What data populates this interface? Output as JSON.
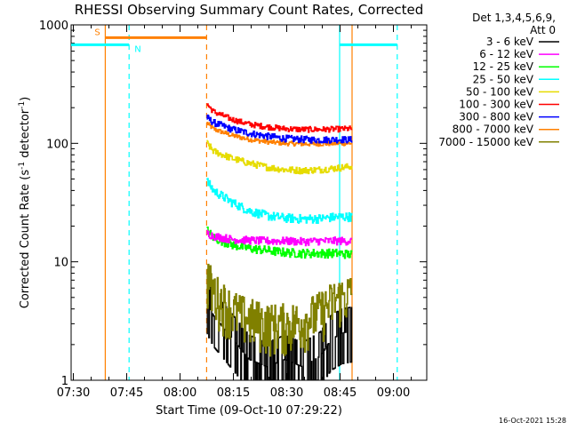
{
  "chart_data": {
    "type": "line",
    "title": "RHESSI Observing Summary Count Rates, Corrected",
    "xlabel": "Start Time (09-Oct-10 07:29:22)",
    "ylabel": "Corrected Count Rate (s⁻¹ detector⁻¹)",
    "ylabel_parts": [
      "Corrected Count Rate (s",
      "-1",
      " detector",
      "-1",
      ")"
    ],
    "x_unit": "minutes after 07:29:22",
    "xlim": [
      0,
      100
    ],
    "ylim": [
      1,
      1000
    ],
    "yscale": "log",
    "x_ticks": [
      {
        "label": "07:30",
        "x": 0.63
      },
      {
        "label": "07:45",
        "x": 15.63
      },
      {
        "label": "08:00",
        "x": 30.63
      },
      {
        "label": "08:15",
        "x": 45.63
      },
      {
        "label": "08:30",
        "x": 60.63
      },
      {
        "label": "08:45",
        "x": 75.63
      },
      {
        "label": "09:00",
        "x": 90.63
      }
    ],
    "y_ticks": [
      {
        "label": "1",
        "y": 1
      },
      {
        "label": "10",
        "y": 10
      },
      {
        "label": "100",
        "y": 100
      },
      {
        "label": "1000",
        "y": 1000
      }
    ],
    "legend_header": [
      "Det 1,3,4,5,6,9,",
      "Att 0"
    ],
    "legend_position": "right",
    "timestamp": "16-Oct-2021 15:28",
    "data_start_x": 38.1,
    "data_end_x": 79.0,
    "series": [
      {
        "name": "3 - 6 keV",
        "color": "#000000",
        "x": [
          38.1,
          40,
          44,
          50,
          55,
          60,
          65,
          70,
          73,
          76,
          79
        ],
        "y": [
          4.5,
          3.5,
          2.5,
          1.5,
          1.3,
          1.5,
          1.3,
          1.6,
          2.2,
          2.5,
          2.6
        ]
      },
      {
        "name": "6 - 12 keV",
        "color": "#ff00ff",
        "x": [
          38.1,
          40,
          45,
          50,
          55,
          60,
          65,
          70,
          75,
          79
        ],
        "y": [
          17.5,
          16.5,
          15.5,
          15.2,
          15.0,
          15.0,
          14.8,
          15.0,
          15.0,
          15.0
        ]
      },
      {
        "name": "12 - 25 keV",
        "color": "#00ff00",
        "x": [
          38.1,
          40,
          45,
          50,
          55,
          60,
          65,
          70,
          75,
          79
        ],
        "y": [
          18.5,
          16.0,
          14.0,
          13.0,
          12.5,
          12.0,
          11.8,
          11.8,
          11.8,
          11.5
        ]
      },
      {
        "name": "25 - 50 keV",
        "color": "#00ffff",
        "x": [
          38.1,
          40,
          45,
          50,
          55,
          60,
          65,
          70,
          75,
          79
        ],
        "y": [
          48,
          40,
          32,
          27,
          24.5,
          23.5,
          23,
          23.2,
          24,
          24
        ]
      },
      {
        "name": "50 - 100 keV",
        "color": "#e6dc00",
        "x": [
          38.1,
          40,
          45,
          50,
          55,
          60,
          65,
          70,
          75,
          79
        ],
        "y": [
          100,
          86,
          75,
          68,
          63,
          60,
          59,
          60,
          62,
          64
        ]
      },
      {
        "name": "100 - 300 keV",
        "color": "#ff0000",
        "x": [
          38.1,
          40,
          45,
          50,
          55,
          60,
          65,
          70,
          75,
          79
        ],
        "y": [
          215,
          185,
          160,
          145,
          138,
          133,
          131,
          131,
          132,
          133
        ]
      },
      {
        "name": "300 - 800 keV",
        "color": "#0000ff",
        "x": [
          38.1,
          40,
          45,
          50,
          55,
          60,
          65,
          70,
          75,
          79
        ],
        "y": [
          165,
          150,
          132,
          122,
          115,
          110,
          108,
          107,
          108,
          107
        ]
      },
      {
        "name": "800 - 7000 keV",
        "color": "#ff8000",
        "x": [
          38.1,
          40,
          45,
          50,
          55,
          60,
          65,
          70,
          75,
          79
        ],
        "y": [
          148,
          132,
          117,
          108,
          103,
          100,
          99,
          99,
          100,
          100
        ]
      },
      {
        "name": "7000 - 15000 keV",
        "color": "#808000",
        "x": [
          38.1,
          40,
          44,
          48,
          52,
          56,
          60,
          65,
          70,
          74,
          79
        ],
        "y": [
          7.5,
          5.5,
          4.2,
          3.5,
          3.2,
          3.0,
          3.0,
          3.2,
          3.8,
          4.8,
          5.5
        ]
      }
    ],
    "annotations": [
      {
        "label": "S",
        "color": "#ff8000",
        "kind": "saa-interval",
        "x_start": 9.6,
        "x_end": 38.1,
        "y": 780
      },
      {
        "label": "N",
        "color": "#00ffff",
        "kind": "night-interval",
        "x_start": -1.0,
        "x_end": 16.3,
        "y": 680
      },
      {
        "label": "",
        "color": "#00ffff",
        "kind": "night-interval",
        "x_start": 75.5,
        "x_end": 91.7,
        "y": 680
      }
    ],
    "vlines": [
      {
        "x": -1.0,
        "color": "#00ffff",
        "style": "solid"
      },
      {
        "x": 9.6,
        "color": "#ff8000",
        "style": "solid"
      },
      {
        "x": 16.3,
        "color": "#00ffff",
        "style": "dashed"
      },
      {
        "x": 38.1,
        "color": "#ff8000",
        "style": "dashed"
      },
      {
        "x": 75.5,
        "color": "#00ffff",
        "style": "solid"
      },
      {
        "x": 79.0,
        "color": "#ff8000",
        "style": "solid"
      },
      {
        "x": 91.7,
        "color": "#00ffff",
        "style": "dashed"
      }
    ]
  }
}
